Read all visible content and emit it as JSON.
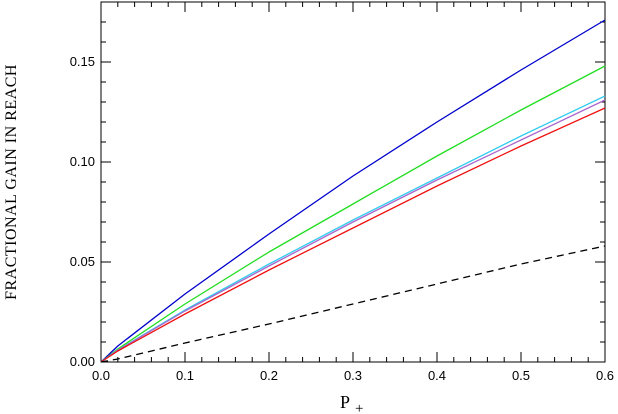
{
  "chart_data": {
    "type": "line",
    "title": "",
    "xlabel": "P",
    "xlabel_subscript": "+",
    "ylabel": "FRACTIONAL GAIN IN REACH",
    "xlim": [
      0.0,
      0.6
    ],
    "ylim": [
      0.0,
      0.18
    ],
    "xticks": [
      0.0,
      0.1,
      0.2,
      0.3,
      0.4,
      0.5,
      0.6
    ],
    "xtick_labels": [
      "0.0",
      "0.1",
      "0.2",
      "0.3",
      "0.4",
      "0.5",
      "0.6"
    ],
    "yticks": [
      0.0,
      0.05,
      0.1,
      0.15
    ],
    "ytick_labels": [
      "0.00",
      "0.05",
      "0.10",
      "0.15"
    ],
    "grid": false,
    "legend": "none",
    "series": [
      {
        "color": "#0000cc",
        "dash": "solid",
        "x": [
          0,
          0.02,
          0.1,
          0.2,
          0.3,
          0.4,
          0.5,
          0.6
        ],
        "y": [
          0,
          0.008,
          0.034,
          0.064,
          0.093,
          0.12,
          0.146,
          0.171
        ]
      },
      {
        "color": "#22dd22",
        "dash": "solid",
        "x": [
          0,
          0.02,
          0.1,
          0.2,
          0.3,
          0.4,
          0.5,
          0.6
        ],
        "y": [
          0,
          0.0065,
          0.029,
          0.055,
          0.079,
          0.103,
          0.126,
          0.148
        ]
      },
      {
        "color": "#33ccee",
        "dash": "solid",
        "x": [
          0,
          0.02,
          0.1,
          0.2,
          0.3,
          0.4,
          0.5,
          0.6
        ],
        "y": [
          0,
          0.006,
          0.026,
          0.049,
          0.071,
          0.092,
          0.113,
          0.133
        ]
      },
      {
        "color": "#aa66cc",
        "dash": "solid",
        "x": [
          0,
          0.02,
          0.1,
          0.2,
          0.3,
          0.4,
          0.5,
          0.6
        ],
        "y": [
          0,
          0.0059,
          0.0255,
          0.048,
          0.07,
          0.091,
          0.111,
          0.131
        ]
      },
      {
        "color": "#ee1111",
        "dash": "solid",
        "x": [
          0,
          0.02,
          0.1,
          0.2,
          0.3,
          0.4,
          0.5,
          0.6
        ],
        "y": [
          0,
          0.0055,
          0.024,
          0.046,
          0.067,
          0.088,
          0.108,
          0.127
        ]
      },
      {
        "color": "#000000",
        "dash": "dashed",
        "x": [
          0,
          0.02,
          0.1,
          0.2,
          0.3,
          0.4,
          0.5,
          0.6
        ],
        "y": [
          0,
          0.0015,
          0.0095,
          0.019,
          0.029,
          0.039,
          0.049,
          0.058
        ]
      }
    ]
  }
}
